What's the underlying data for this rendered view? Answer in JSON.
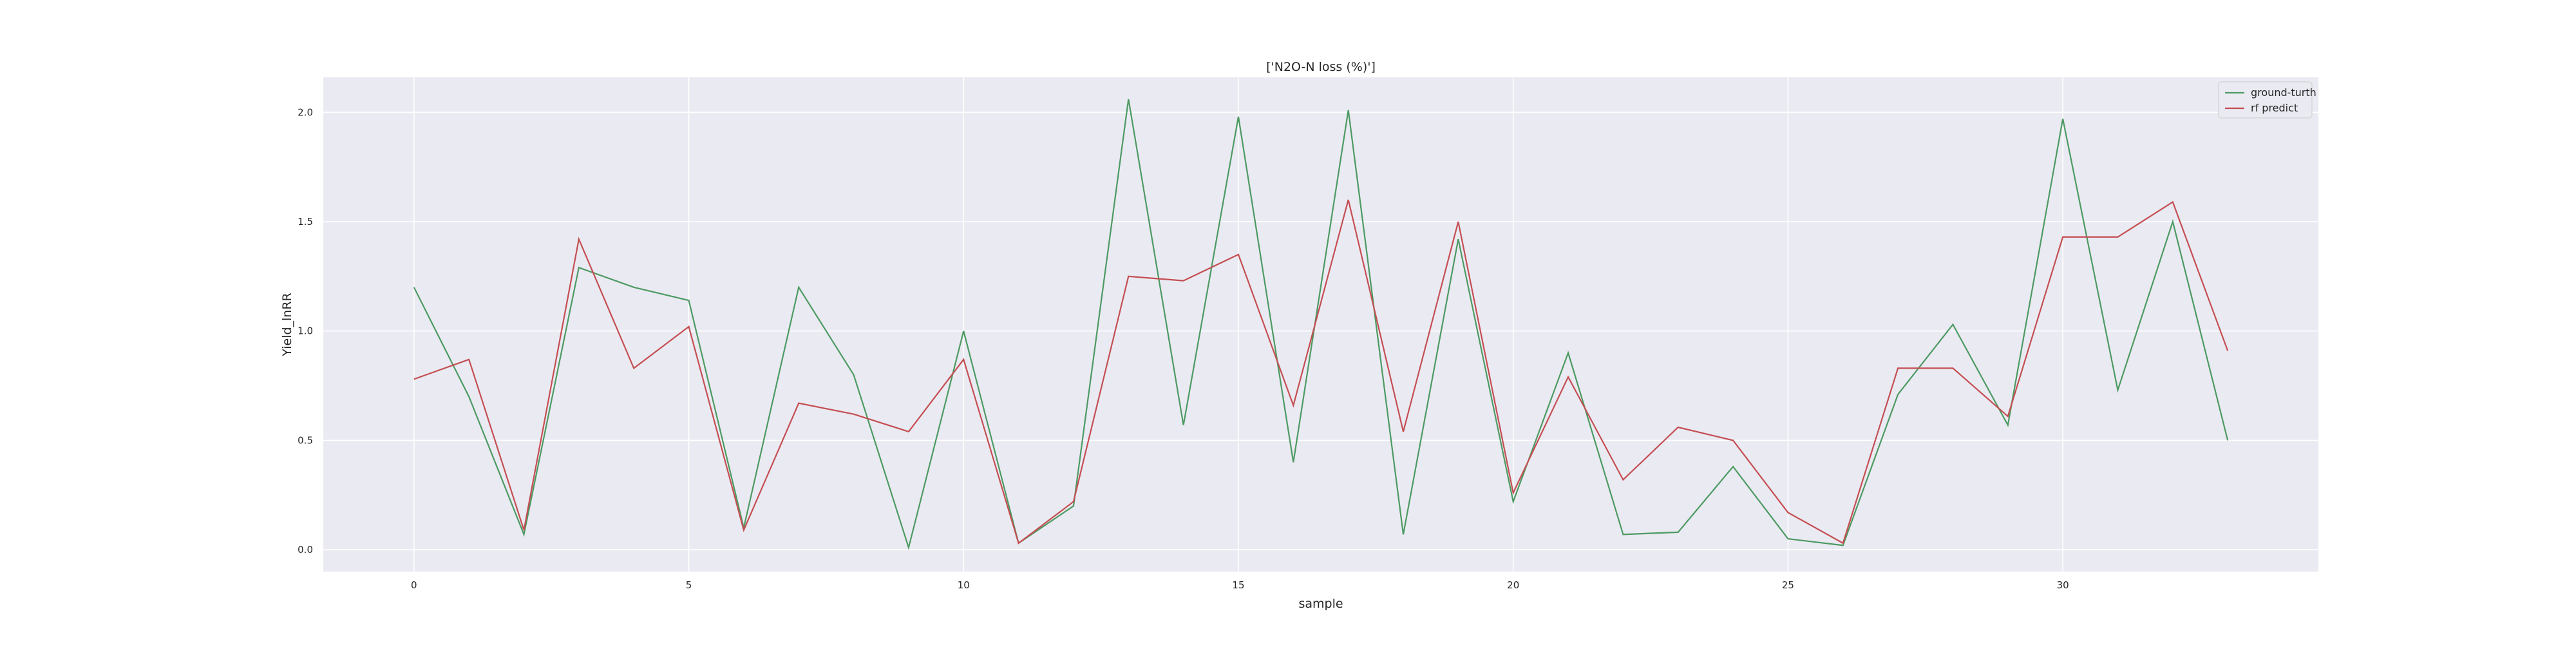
{
  "chart_data": {
    "type": "line",
    "title": "['N2O-N loss (%)']",
    "xlabel": "sample",
    "ylabel": "Yield_lnRR",
    "x": [
      0,
      1,
      2,
      3,
      4,
      5,
      6,
      7,
      8,
      9,
      10,
      11,
      12,
      13,
      14,
      15,
      16,
      17,
      18,
      19,
      20,
      21,
      22,
      23,
      24,
      25,
      26,
      27,
      28,
      29,
      30,
      31,
      32,
      33
    ],
    "xlim": [
      -1.65,
      34.65
    ],
    "ylim": [
      -0.1,
      2.16
    ],
    "xticks": [
      0,
      5,
      10,
      15,
      20,
      25,
      30
    ],
    "xtick_labels": [
      "0",
      "5",
      "10",
      "15",
      "20",
      "25",
      "30"
    ],
    "yticks": [
      0.0,
      0.5,
      1.0,
      1.5,
      2.0
    ],
    "ytick_labels": [
      "0.0",
      "0.5",
      "1.0",
      "1.5",
      "2.0"
    ],
    "grid": true,
    "legend_position": "top-right",
    "series": [
      {
        "name": "ground-turth",
        "color": "#4c9a62",
        "values": [
          1.2,
          0.7,
          0.07,
          1.29,
          1.2,
          1.14,
          0.1,
          1.2,
          0.8,
          0.01,
          1.0,
          0.03,
          0.2,
          2.06,
          0.57,
          1.98,
          0.4,
          2.01,
          0.07,
          1.42,
          0.22,
          0.9,
          0.07,
          0.08,
          0.38,
          0.05,
          0.02,
          0.71,
          1.03,
          0.57,
          1.97,
          0.73,
          1.5,
          0.5
        ]
      },
      {
        "name": "rf predict",
        "color": "#c44e52",
        "values": [
          0.78,
          0.87,
          0.09,
          1.42,
          0.83,
          1.02,
          0.09,
          0.67,
          0.62,
          0.54,
          0.87,
          0.03,
          0.22,
          1.25,
          1.23,
          1.35,
          0.66,
          1.6,
          0.54,
          1.5,
          0.26,
          0.79,
          0.32,
          0.56,
          0.5,
          0.17,
          0.03,
          0.83,
          0.83,
          0.61,
          1.43,
          1.43,
          1.59,
          0.91
        ]
      }
    ],
    "colors": {
      "plot_background": "#eaeaf2",
      "grid": "#ffffff"
    }
  }
}
